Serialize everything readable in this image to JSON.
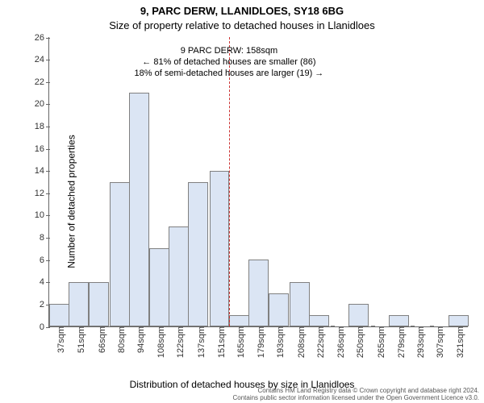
{
  "chart": {
    "type": "histogram",
    "title_main": "9, PARC DERW, LLANIDLOES, SY18 6BG",
    "title_sub": "Size of property relative to detached houses in Llanidloes",
    "ylabel": "Number of detached properties",
    "xlabel": "Distribution of detached houses by size in Llanidloes",
    "background_color": "#ffffff",
    "axis_color": "#666666",
    "tick_fontsize": 11,
    "label_fontsize": 12,
    "title_fontsize": 13,
    "x_min": 30,
    "x_max": 328,
    "x_ticks": [
      37,
      51,
      66,
      80,
      94,
      108,
      122,
      137,
      151,
      165,
      179,
      193,
      208,
      222,
      236,
      250,
      265,
      279,
      293,
      307,
      321
    ],
    "x_tick_suffix": "sqm",
    "y_min": 0,
    "y_max": 26,
    "y_ticks": [
      0,
      2,
      4,
      6,
      8,
      10,
      12,
      14,
      16,
      18,
      20,
      22,
      24,
      26
    ],
    "bar_fill": "#dbe5f4",
    "bar_stroke": "#808080",
    "bar_width_units": 14.3,
    "bars": [
      {
        "x0": 30,
        "count": 2
      },
      {
        "x0": 44,
        "count": 4
      },
      {
        "x0": 58,
        "count": 4
      },
      {
        "x0": 73,
        "count": 13
      },
      {
        "x0": 87,
        "count": 21
      },
      {
        "x0": 101,
        "count": 7
      },
      {
        "x0": 115,
        "count": 9
      },
      {
        "x0": 129,
        "count": 13
      },
      {
        "x0": 144,
        "count": 14
      },
      {
        "x0": 158,
        "count": 1
      },
      {
        "x0": 172,
        "count": 6
      },
      {
        "x0": 186,
        "count": 3
      },
      {
        "x0": 201,
        "count": 4
      },
      {
        "x0": 215,
        "count": 1
      },
      {
        "x0": 229,
        "count": 0
      },
      {
        "x0": 243,
        "count": 2
      },
      {
        "x0": 257,
        "count": 0
      },
      {
        "x0": 272,
        "count": 1
      },
      {
        "x0": 286,
        "count": 0
      },
      {
        "x0": 300,
        "count": 0
      },
      {
        "x0": 314,
        "count": 1
      }
    ],
    "marker": {
      "x": 158,
      "color": "#cc3333"
    },
    "annot": {
      "line1": "9 PARC DERW: 158sqm",
      "line2": "← 81% of detached houses are smaller (86)",
      "line3": "18% of semi-detached houses are larger (19) →",
      "x_center": 158,
      "y_top_value": 25.2
    },
    "credit_line1": "Contains HM Land Registry data © Crown copyright and database right 2024.",
    "credit_line2": "Contains public sector information licensed under the Open Government Licence v3.0."
  }
}
